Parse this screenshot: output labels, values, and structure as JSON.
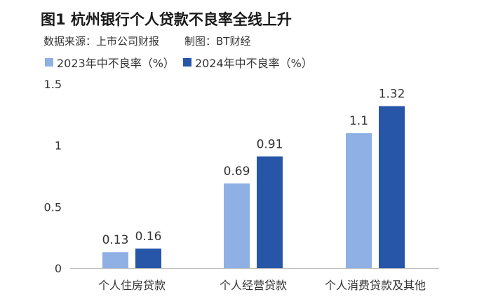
{
  "title": "图1 杭州银行个人贷款不良率全线上升",
  "source": "数据来源：上市公司财报",
  "credit": "制图：BT财经",
  "colors": {
    "s2023": "#8eb0e5",
    "s2024": "#2756a9",
    "axis": "#bfbfbf",
    "text": "#333333"
  },
  "chart_data": {
    "type": "bar",
    "categories": [
      "个人住房贷款",
      "个人经营贷款",
      "个人消费贷款及其他"
    ],
    "series": [
      {
        "name": "2023年中不良率（%）",
        "values": [
          0.13,
          0.69,
          1.1
        ],
        "labels": [
          "0.13",
          "0.69",
          "1.1"
        ]
      },
      {
        "name": "2024年中不良率（%）",
        "values": [
          0.16,
          0.91,
          1.32
        ],
        "labels": [
          "0.16",
          "0.91",
          "1.32"
        ]
      }
    ],
    "yticks": [
      "0",
      "0.5",
      "1",
      "1.5"
    ],
    "ylim": [
      0,
      1.5
    ],
    "title": "杭州银行个人贷款不良率全线上升",
    "xlabel": "",
    "ylabel": "",
    "legend": "top-left"
  }
}
